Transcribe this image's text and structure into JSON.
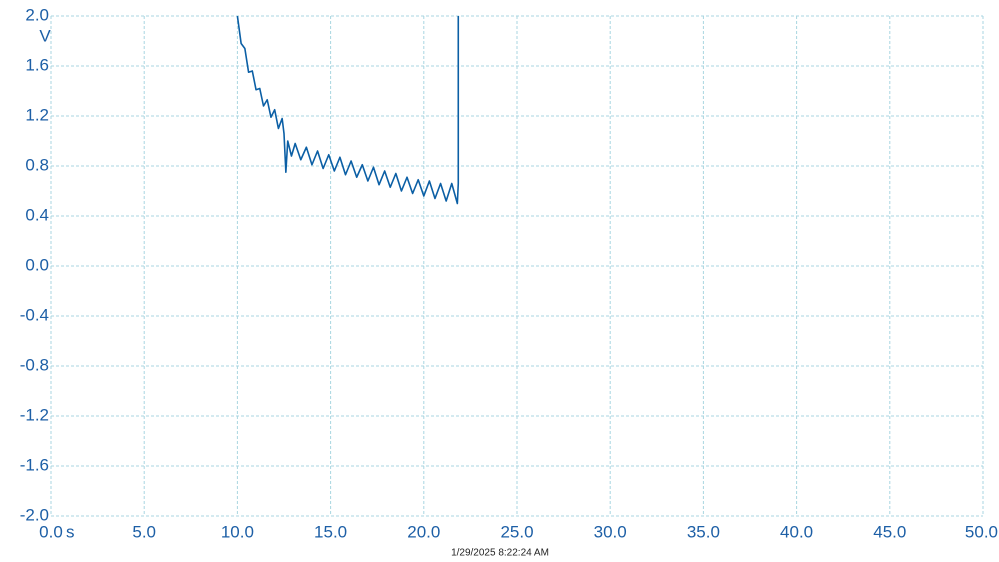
{
  "chart_data": {
    "type": "line",
    "x_unit": "s",
    "y_unit": "V",
    "annotation": "1/29/2025 8:22:24 AM",
    "grid": true,
    "xlim": [
      0,
      50
    ],
    "xticks": [
      {
        "value": 0,
        "label": "0.0"
      },
      {
        "value": 5,
        "label": "5.0"
      },
      {
        "value": 10,
        "label": "10.0"
      },
      {
        "value": 15,
        "label": "15.0"
      },
      {
        "value": 20,
        "label": "20.0"
      },
      {
        "value": 25,
        "label": "25.0"
      },
      {
        "value": 30,
        "label": "30.0"
      },
      {
        "value": 35,
        "label": "35.0"
      },
      {
        "value": 40,
        "label": "40.0"
      },
      {
        "value": 45,
        "label": "45.0"
      },
      {
        "value": 50,
        "label": "50.0"
      }
    ],
    "ylim": [
      -2,
      2
    ],
    "yticks": [
      {
        "value": 2,
        "label": "2.0"
      },
      1.6,
      1.2,
      0.8,
      0.4,
      {
        "value": 0,
        "label": "0.0"
      },
      -0.4,
      -0.8,
      -1.2,
      -1.6,
      {
        "value": -2,
        "label": "-2.0"
      }
    ],
    "x": [
      10.0,
      10.2,
      10.4,
      10.6,
      10.8,
      11.0,
      11.2,
      11.4,
      11.6,
      11.8,
      12.0,
      12.2,
      12.4,
      12.5,
      12.6,
      12.7,
      12.9,
      13.1,
      13.4,
      13.7,
      14.0,
      14.3,
      14.6,
      14.9,
      15.2,
      15.5,
      15.8,
      16.1,
      16.4,
      16.7,
      17.0,
      17.3,
      17.6,
      17.9,
      18.2,
      18.5,
      18.8,
      19.1,
      19.4,
      19.7,
      20.0,
      20.3,
      20.6,
      20.9,
      21.2,
      21.5,
      21.8,
      21.85,
      21.85
    ],
    "series": [
      {
        "color": "#0b5fa5",
        "values": [
          2.0,
          1.78,
          1.74,
          1.55,
          1.56,
          1.41,
          1.42,
          1.28,
          1.33,
          1.19,
          1.25,
          1.1,
          1.18,
          1.06,
          0.75,
          1.0,
          0.88,
          0.98,
          0.85,
          0.95,
          0.81,
          0.92,
          0.78,
          0.89,
          0.76,
          0.87,
          0.73,
          0.84,
          0.71,
          0.81,
          0.68,
          0.79,
          0.65,
          0.76,
          0.63,
          0.74,
          0.6,
          0.71,
          0.58,
          0.69,
          0.56,
          0.68,
          0.54,
          0.66,
          0.52,
          0.66,
          0.5,
          0.66,
          2.0
        ]
      }
    ]
  }
}
